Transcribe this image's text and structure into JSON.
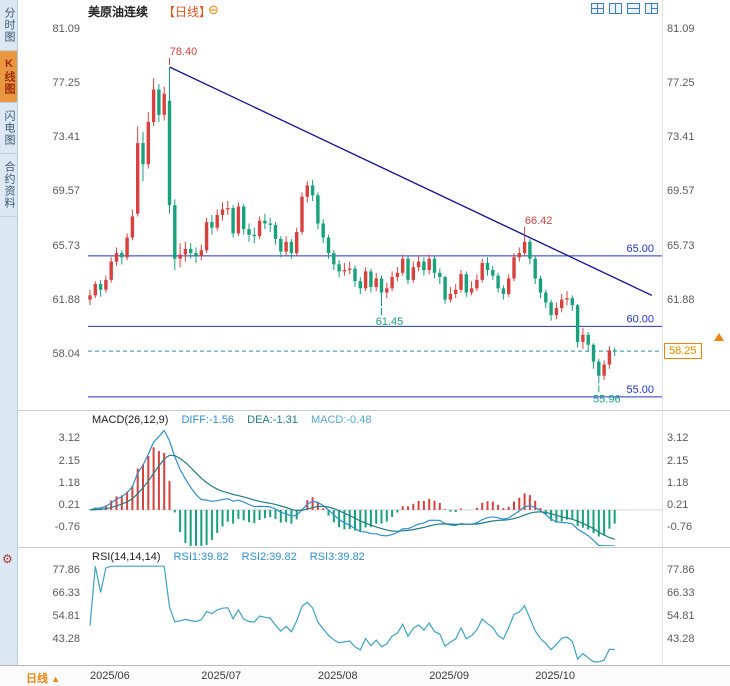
{
  "header": {
    "title": "美原油连续",
    "period_tag": "【日线】",
    "zoom_out_icon": "⊖",
    "layout_icons": [
      "layout-grid-2x2-icon",
      "layout-split-vertical-icon",
      "layout-split-horizontal-icon",
      "layout-three-pane-icon"
    ]
  },
  "sidebar": {
    "tabs": [
      {
        "label": "分时图",
        "active": false
      },
      {
        "label": "K线图",
        "active": true
      },
      {
        "label": "闪电图",
        "active": false
      },
      {
        "label": "合约资料",
        "active": false
      }
    ],
    "settings_icon": "⚙"
  },
  "indicators": {
    "macd": {
      "title": "MACD(26,12,9)",
      "diff_label": "DIFF:-1.56",
      "dea_label": "DEA:-1.31",
      "macd_label": "MACD:-0.48"
    },
    "rsi": {
      "title": "RSI(14,14,14)",
      "rsi1_label": "RSI1:39.82",
      "rsi2_label": "RSI2:39.82",
      "rsi3_label": "RSI3:39.82"
    }
  },
  "footer": {
    "period_label": "日线",
    "arrow": "▲"
  },
  "colors": {
    "up": "#d9413f",
    "down": "#17a27c",
    "support": "#2333cc",
    "trendline": "#12129e",
    "dashed": "#2f8ea8",
    "diff": "#2f8ed0",
    "dea": "#1f7f87",
    "rsi": "#3da3c4",
    "accent": "#f0840d",
    "axis_text": "#5a5a5a",
    "zero_line": "#d8d8d8"
  },
  "chart_data": {
    "type": "candlestick",
    "symbol": "美原油连续",
    "period": "日线",
    "x_ticks": [
      {
        "label": "2025/06",
        "index": 0
      },
      {
        "label": "2025/07",
        "index": 21
      },
      {
        "label": "2025/08",
        "index": 43
      },
      {
        "label": "2025/09",
        "index": 64
      },
      {
        "label": "2025/10",
        "index": 84
      }
    ],
    "price_axis_ticks": [
      81.09,
      77.25,
      73.41,
      69.57,
      65.73,
      61.88,
      58.04
    ],
    "price_range": [
      54.07,
      81.59
    ],
    "support_lines": [
      {
        "price": 65.0,
        "label": "65.00"
      },
      {
        "price": 60.0,
        "label": "60.00"
      },
      {
        "price": 55.0,
        "label": "55.00"
      }
    ],
    "trendline": {
      "from": {
        "index": 15,
        "price": 78.4
      },
      "to": {
        "index": 106,
        "price": 62.2
      }
    },
    "current_price": {
      "value": 58.25,
      "label": "58.25"
    },
    "annotations": [
      {
        "text": "78.40",
        "index": 15,
        "price": 78.4,
        "side": "above",
        "color": "#d9413f"
      },
      {
        "text": "66.42",
        "index": 82,
        "price": 66.42,
        "side": "above",
        "color": "#d9413f"
      },
      {
        "text": "61.45",
        "index": 55,
        "price": 61.45,
        "side": "below",
        "color": "#17a27c"
      },
      {
        "text": "55.96",
        "index": 96,
        "price": 55.96,
        "side": "below",
        "color": "#17a27c"
      }
    ],
    "macd": {
      "params": "MACD(26,12,9)",
      "diff": -1.56,
      "dea": -1.31,
      "macd": -0.48,
      "y_ticks": [
        3.12,
        2.15,
        1.18,
        0.21,
        -0.76
      ],
      "range": [
        -1.57,
        3.75
      ]
    },
    "rsi": {
      "params": "RSI(14,14,14)",
      "rsi1": 39.82,
      "rsi2": 39.82,
      "rsi3": 39.82,
      "y_ticks": [
        77.86,
        66.33,
        54.81,
        43.28
      ],
      "range": [
        31.9,
        79.86
      ]
    },
    "candles": [
      [
        61.9,
        62.6,
        61.5,
        62.2
      ],
      [
        62.2,
        63.2,
        62.0,
        63.0
      ],
      [
        63.0,
        63.3,
        62.1,
        62.6
      ],
      [
        62.6,
        63.6,
        62.4,
        63.3
      ],
      [
        63.3,
        64.9,
        63.1,
        64.6
      ],
      [
        64.6,
        65.6,
        64.3,
        65.2
      ],
      [
        65.2,
        65.4,
        64.4,
        64.9
      ],
      [
        64.9,
        66.6,
        64.7,
        66.3
      ],
      [
        66.3,
        68.3,
        66.1,
        67.8
      ],
      [
        68.0,
        74.2,
        67.8,
        73.0
      ],
      [
        73.0,
        73.8,
        70.3,
        71.5
      ],
      [
        71.5,
        75.2,
        71.2,
        74.5
      ],
      [
        74.5,
        77.6,
        74.2,
        76.8
      ],
      [
        76.8,
        77.2,
        74.5,
        75.0
      ],
      [
        75.0,
        77.0,
        74.6,
        76.5
      ],
      [
        76.0,
        78.4,
        68.0,
        68.6
      ],
      [
        68.6,
        69.0,
        64.0,
        64.8
      ],
      [
        64.8,
        65.9,
        64.2,
        65.1
      ],
      [
        65.1,
        66.0,
        64.6,
        65.5
      ],
      [
        65.5,
        65.9,
        64.8,
        65.2
      ],
      [
        65.2,
        65.6,
        64.5,
        65.0
      ],
      [
        65.0,
        65.8,
        64.7,
        65.4
      ],
      [
        65.4,
        67.7,
        65.2,
        67.4
      ],
      [
        67.4,
        67.9,
        66.5,
        67.0
      ],
      [
        67.0,
        68.3,
        66.8,
        67.9
      ],
      [
        67.9,
        68.8,
        67.5,
        68.3
      ],
      [
        68.3,
        68.9,
        67.9,
        68.4
      ],
      [
        68.4,
        68.6,
        66.3,
        66.6
      ],
      [
        66.6,
        68.8,
        66.4,
        68.5
      ],
      [
        68.5,
        68.7,
        66.5,
        66.9
      ],
      [
        66.9,
        67.3,
        66.0,
        66.5
      ],
      [
        66.5,
        67.0,
        65.9,
        66.4
      ],
      [
        66.4,
        67.8,
        66.2,
        67.5
      ],
      [
        67.5,
        68.0,
        66.9,
        67.3
      ],
      [
        67.3,
        67.7,
        66.7,
        67.2
      ],
      [
        67.2,
        67.4,
        65.8,
        66.2
      ],
      [
        66.2,
        66.4,
        64.9,
        65.3
      ],
      [
        65.3,
        66.4,
        65.0,
        66.0
      ],
      [
        66.0,
        66.2,
        64.8,
        65.2
      ],
      [
        65.2,
        67.0,
        65.0,
        66.7
      ],
      [
        66.7,
        69.5,
        66.5,
        69.2
      ],
      [
        69.2,
        70.3,
        68.8,
        70.0
      ],
      [
        70.0,
        70.4,
        68.9,
        69.3
      ],
      [
        69.3,
        69.5,
        66.9,
        67.3
      ],
      [
        67.3,
        67.6,
        65.9,
        66.3
      ],
      [
        66.3,
        66.5,
        64.8,
        65.2
      ],
      [
        65.2,
        65.4,
        64.0,
        64.4
      ],
      [
        64.4,
        64.7,
        63.5,
        63.9
      ],
      [
        63.9,
        64.5,
        63.6,
        64.0
      ],
      [
        64.0,
        64.6,
        63.7,
        64.1
      ],
      [
        64.1,
        64.3,
        62.8,
        63.2
      ],
      [
        63.2,
        63.5,
        62.3,
        62.7
      ],
      [
        62.7,
        64.2,
        62.5,
        63.9
      ],
      [
        63.9,
        64.1,
        62.4,
        62.8
      ],
      [
        62.8,
        63.8,
        62.5,
        63.4
      ],
      [
        63.4,
        63.6,
        61.45,
        62.4
      ],
      [
        62.4,
        63.1,
        62.0,
        62.7
      ],
      [
        62.7,
        63.9,
        62.5,
        63.5
      ],
      [
        63.5,
        64.2,
        63.2,
        63.8
      ],
      [
        63.8,
        65.1,
        63.6,
        64.8
      ],
      [
        64.8,
        65.0,
        63.0,
        63.3
      ],
      [
        63.3,
        64.6,
        63.1,
        64.2
      ],
      [
        64.2,
        65.0,
        63.9,
        64.6
      ],
      [
        64.6,
        64.9,
        63.6,
        64.0
      ],
      [
        64.0,
        65.1,
        63.7,
        64.8
      ],
      [
        64.8,
        65.0,
        63.4,
        63.8
      ],
      [
        63.8,
        64.1,
        63.0,
        63.5
      ],
      [
        63.5,
        63.6,
        61.6,
        61.9
      ],
      [
        61.9,
        62.8,
        61.7,
        62.3
      ],
      [
        62.3,
        63.0,
        62.0,
        62.6
      ],
      [
        62.6,
        64.0,
        62.4,
        63.7
      ],
      [
        63.7,
        63.9,
        62.1,
        62.4
      ],
      [
        62.4,
        63.2,
        62.2,
        62.7
      ],
      [
        62.7,
        63.7,
        62.5,
        63.3
      ],
      [
        63.3,
        64.8,
        63.1,
        64.5
      ],
      [
        64.5,
        64.9,
        63.6,
        64.0
      ],
      [
        64.0,
        64.3,
        63.3,
        63.6
      ],
      [
        63.6,
        63.8,
        62.4,
        62.7
      ],
      [
        62.7,
        62.9,
        61.9,
        62.3
      ],
      [
        62.3,
        63.7,
        62.1,
        63.4
      ],
      [
        63.4,
        65.2,
        63.2,
        64.9
      ],
      [
        64.9,
        65.6,
        64.6,
        65.2
      ],
      [
        65.2,
        66.42,
        65.0,
        66.0
      ],
      [
        66.0,
        66.2,
        64.4,
        64.8
      ],
      [
        64.8,
        65.0,
        63.0,
        63.4
      ],
      [
        63.4,
        63.6,
        62.0,
        62.4
      ],
      [
        62.4,
        62.6,
        61.3,
        61.7
      ],
      [
        61.7,
        61.9,
        60.4,
        60.8
      ],
      [
        60.8,
        61.7,
        60.5,
        61.3
      ],
      [
        61.3,
        62.3,
        61.0,
        61.9
      ],
      [
        61.9,
        62.5,
        61.5,
        62.0
      ],
      [
        62.0,
        62.2,
        61.1,
        61.5
      ],
      [
        61.5,
        61.6,
        58.5,
        58.9
      ],
      [
        58.9,
        59.9,
        58.4,
        59.4
      ],
      [
        59.4,
        59.6,
        58.2,
        58.7
      ],
      [
        58.7,
        58.8,
        57.0,
        57.5
      ],
      [
        57.5,
        57.7,
        55.96,
        56.5
      ],
      [
        56.5,
        57.6,
        56.2,
        57.3
      ],
      [
        57.3,
        58.6,
        57.0,
        58.3
      ],
      [
        58.3,
        58.5,
        57.9,
        58.25
      ]
    ]
  }
}
